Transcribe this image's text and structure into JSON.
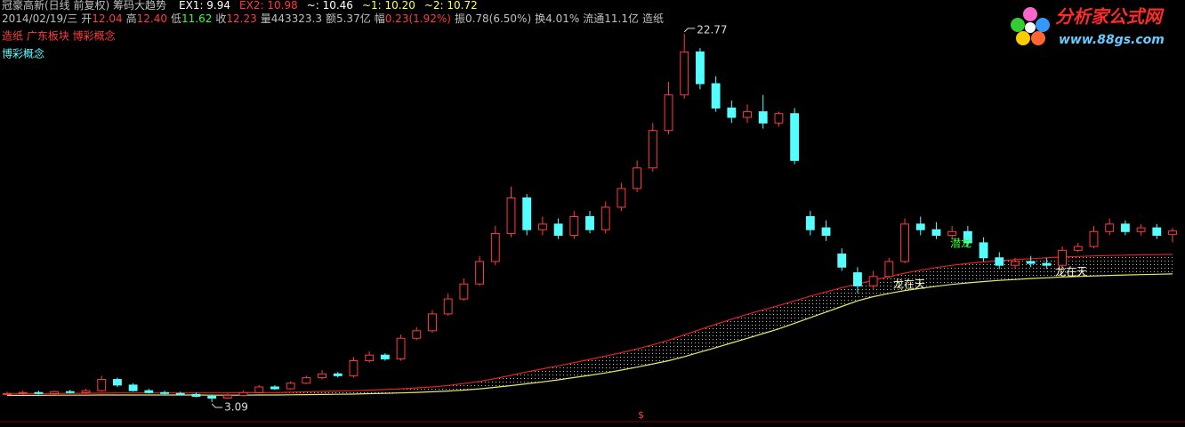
{
  "header": {
    "title": "冠豪高新(日线 前复权) 筹码大趋势",
    "indicators": [
      {
        "text": "EX1: 9.94",
        "color": "#ffffff"
      },
      {
        "text": "EX2: 10.98",
        "color": "#ff3b3b"
      },
      {
        "text": "~: 10.46",
        "color": "#ffffff"
      },
      {
        "text": "~1: 10.20",
        "color": "#ffff54"
      },
      {
        "text": "~2: 10.72",
        "color": "#ffff54"
      }
    ],
    "info": [
      {
        "text": "2014/02/19/三",
        "color": "#c0c0c0"
      },
      {
        "text": "开",
        "color": "#c0c0c0"
      },
      {
        "text": "12.04",
        "color": "#ff3b3b"
      },
      {
        "text": "高",
        "color": "#c0c0c0"
      },
      {
        "text": "12.40",
        "color": "#ff3b3b"
      },
      {
        "text": "低",
        "color": "#c0c0c0"
      },
      {
        "text": "11.62",
        "color": "#33ff33"
      },
      {
        "text": "收",
        "color": "#c0c0c0"
      },
      {
        "text": "12.23",
        "color": "#ff3b3b"
      },
      {
        "text": "量443323.3",
        "color": "#c0c0c0"
      },
      {
        "text": "额5.37亿",
        "color": "#c0c0c0"
      },
      {
        "text": "幅",
        "color": "#c0c0c0"
      },
      {
        "text": "0.23(1.92%)",
        "color": "#ff3b3b"
      },
      {
        "text": "振0.78(6.50%)",
        "color": "#c0c0c0"
      },
      {
        "text": "换4.01%",
        "color": "#c0c0c0"
      },
      {
        "text": "流通11.1亿",
        "color": "#c0c0c0"
      },
      {
        "text": "造纸",
        "color": "#c0c0c0"
      }
    ],
    "sectors": "造纸 广东板块 博彩概念",
    "concept": "博彩概念"
  },
  "logo": {
    "name": "分析家公式网",
    "url": "www.88gs.com"
  },
  "chart_data": {
    "type": "candlestick",
    "ylim": [
      1.95,
      23.62
    ],
    "up_color": "#ff3b3b",
    "down_color": "#54ffff",
    "open": [
      3.5,
      3.55,
      3.6,
      3.55,
      3.65,
      3.6,
      3.7,
      4.3,
      4.0,
      3.7,
      3.6,
      3.55,
      3.5,
      3.4,
      3.3,
      3.45,
      3.6,
      3.9,
      3.8,
      4.1,
      4.4,
      4.6,
      4.5,
      5.3,
      5.6,
      5.4,
      6.5,
      6.9,
      7.8,
      8.6,
      9.4,
      10.6,
      12.1,
      14.0,
      12.3,
      12.6,
      12.0,
      13.0,
      12.3,
      13.5,
      14.5,
      15.6,
      17.6,
      19.5,
      21.8,
      20.1,
      18.8,
      18.3,
      18.6,
      18.0,
      18.5,
      13.0,
      12.4,
      11.0,
      10.0,
      9.3,
      9.8,
      10.6,
      12.6,
      12.3,
      12.0,
      12.2,
      11.6,
      10.8,
      10.4,
      10.6,
      10.5,
      10.4,
      11.2,
      11.4,
      12.2,
      12.6,
      12.2,
      12.4,
      12.04
    ],
    "high": [
      3.65,
      3.7,
      3.7,
      3.7,
      3.75,
      3.8,
      4.5,
      4.4,
      4.1,
      3.8,
      3.7,
      3.65,
      3.6,
      3.5,
      3.55,
      3.7,
      4.0,
      4.0,
      4.2,
      4.5,
      4.8,
      4.7,
      5.5,
      5.8,
      5.7,
      6.7,
      7.1,
      8.0,
      8.9,
      9.7,
      10.9,
      12.5,
      14.6,
      14.2,
      13.0,
      12.9,
      13.3,
      13.3,
      13.8,
      14.8,
      16.0,
      18.0,
      20.2,
      22.77,
      22.0,
      20.5,
      19.2,
      19.0,
      19.5,
      18.6,
      18.8,
      13.3,
      12.8,
      11.3,
      10.3,
      10.1,
      10.8,
      12.9,
      13.0,
      12.7,
      12.5,
      12.5,
      11.9,
      11.1,
      10.8,
      10.9,
      10.8,
      11.4,
      11.6,
      12.5,
      12.9,
      12.8,
      12.6,
      12.6,
      12.4
    ],
    "low": [
      3.45,
      3.5,
      3.5,
      3.5,
      3.55,
      3.55,
      3.65,
      3.9,
      3.65,
      3.55,
      3.5,
      3.45,
      3.35,
      3.09,
      3.25,
      3.4,
      3.55,
      3.75,
      3.75,
      4.05,
      4.3,
      4.4,
      4.4,
      5.2,
      5.3,
      5.3,
      6.4,
      6.8,
      7.7,
      8.5,
      9.3,
      10.4,
      11.9,
      12.0,
      12.0,
      11.8,
      11.8,
      12.1,
      12.1,
      13.3,
      14.3,
      15.4,
      17.4,
      19.3,
      19.8,
      18.6,
      18.0,
      18.0,
      17.7,
      17.8,
      15.8,
      12.0,
      11.7,
      10.1,
      8.9,
      9.1,
      9.7,
      10.5,
      12.0,
      11.8,
      11.8,
      11.4,
      10.6,
      10.2,
      10.2,
      10.3,
      10.2,
      10.3,
      11.1,
      11.3,
      12.0,
      12.0,
      12.0,
      11.8,
      11.62
    ],
    "close": [
      3.55,
      3.6,
      3.55,
      3.65,
      3.6,
      3.7,
      4.3,
      4.0,
      3.7,
      3.6,
      3.55,
      3.5,
      3.4,
      3.3,
      3.45,
      3.6,
      3.9,
      3.8,
      4.1,
      4.4,
      4.6,
      4.5,
      5.3,
      5.6,
      5.4,
      6.5,
      6.9,
      7.8,
      8.6,
      9.4,
      10.6,
      12.1,
      14.0,
      12.3,
      12.6,
      12.0,
      13.0,
      12.3,
      13.5,
      14.5,
      15.6,
      17.6,
      19.5,
      21.8,
      20.1,
      18.8,
      18.3,
      18.6,
      18.0,
      18.5,
      16.0,
      12.3,
      12.0,
      10.3,
      9.3,
      9.8,
      10.6,
      12.6,
      12.3,
      12.0,
      12.2,
      11.6,
      10.8,
      10.4,
      10.6,
      10.5,
      10.4,
      11.2,
      11.4,
      12.2,
      12.6,
      12.2,
      12.4,
      12.0,
      12.23
    ],
    "band_upper": [
      3.55,
      3.55,
      3.55,
      3.55,
      3.56,
      3.56,
      3.57,
      3.58,
      3.58,
      3.58,
      3.58,
      3.58,
      3.58,
      3.58,
      3.58,
      3.59,
      3.6,
      3.6,
      3.62,
      3.64,
      3.66,
      3.68,
      3.7,
      3.73,
      3.76,
      3.8,
      3.85,
      3.9,
      3.98,
      4.08,
      4.2,
      4.35,
      4.52,
      4.7,
      4.87,
      5.03,
      5.2,
      5.37,
      5.55,
      5.73,
      5.93,
      6.15,
      6.4,
      6.68,
      6.97,
      7.25,
      7.52,
      7.78,
      8.02,
      8.25,
      8.5,
      8.75,
      8.98,
      9.2,
      9.4,
      9.6,
      9.8,
      9.98,
      10.14,
      10.28,
      10.4,
      10.5,
      10.58,
      10.64,
      10.7,
      10.75,
      10.8,
      10.84,
      10.87,
      10.9,
      10.92,
      10.94,
      10.96,
      10.97,
      10.98
    ],
    "band_lower": [
      3.45,
      3.45,
      3.45,
      3.46,
      3.46,
      3.46,
      3.47,
      3.47,
      3.47,
      3.47,
      3.47,
      3.47,
      3.47,
      3.46,
      3.46,
      3.46,
      3.47,
      3.47,
      3.48,
      3.49,
      3.5,
      3.51,
      3.52,
      3.54,
      3.56,
      3.58,
      3.61,
      3.64,
      3.68,
      3.73,
      3.8,
      3.88,
      3.97,
      4.07,
      4.17,
      4.28,
      4.4,
      4.52,
      4.65,
      4.8,
      4.96,
      5.13,
      5.3,
      5.52,
      5.76,
      6.0,
      6.25,
      6.5,
      6.75,
      7.0,
      7.3,
      7.6,
      7.9,
      8.2,
      8.5,
      8.72,
      8.9,
      9.05,
      9.17,
      9.28,
      9.38,
      9.46,
      9.53,
      9.59,
      9.64,
      9.69,
      9.73,
      9.77,
      9.8,
      9.83,
      9.86,
      9.88,
      9.9,
      9.92,
      9.94
    ],
    "band_upper_color": "#e02020",
    "band_lower_color": "#e8e870",
    "annotations": [
      "龙在天",
      "潜龙",
      "龙在天"
    ],
    "marker": "$"
  }
}
